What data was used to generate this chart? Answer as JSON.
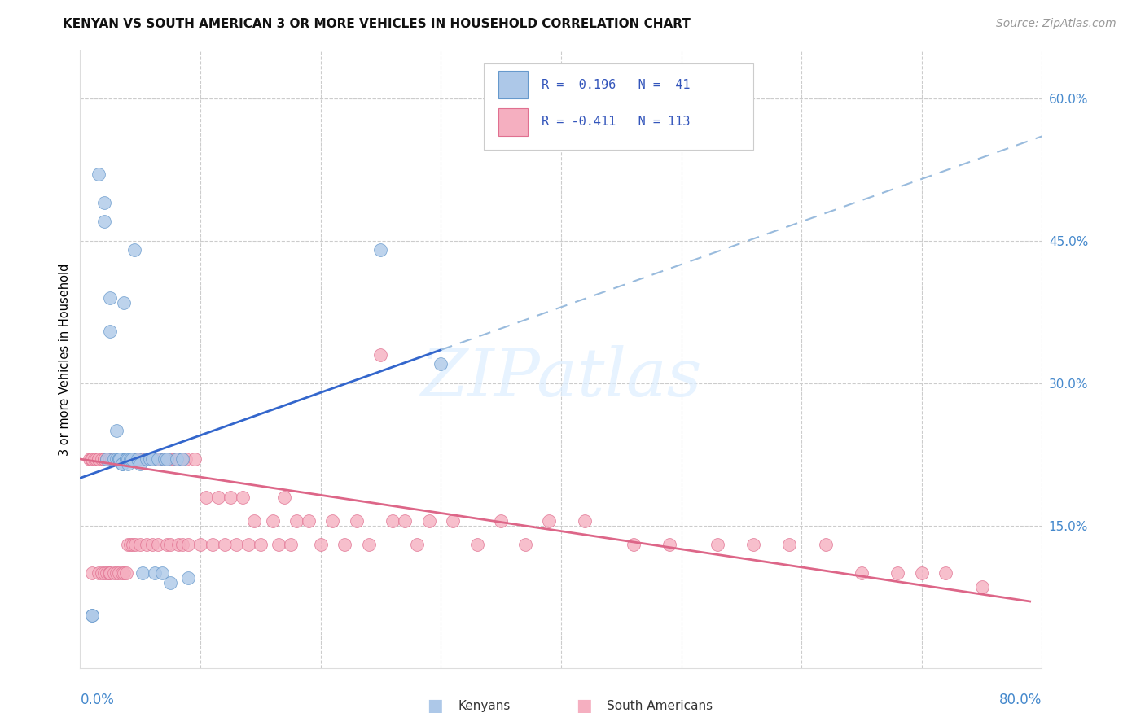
{
  "title": "KENYAN VS SOUTH AMERICAN 3 OR MORE VEHICLES IN HOUSEHOLD CORRELATION CHART",
  "source": "Source: ZipAtlas.com",
  "ylabel": "3 or more Vehicles in Household",
  "right_yticks": [
    "60.0%",
    "45.0%",
    "30.0%",
    "15.0%"
  ],
  "right_ytick_vals": [
    0.6,
    0.45,
    0.3,
    0.15
  ],
  "xmin": 0.0,
  "xmax": 0.8,
  "ymin": 0.0,
  "ymax": 0.65,
  "kenyan_color": "#adc8e8",
  "sa_color": "#f5afc0",
  "kenyan_edge": "#6699cc",
  "sa_edge": "#e07090",
  "blue_line_color": "#3366cc",
  "pink_line_color": "#dd6688",
  "dashed_line_color": "#99bbdd",
  "watermark_color": "#ddeeff",
  "kenyan_x": [
    0.01,
    0.01,
    0.015,
    0.02,
    0.02,
    0.022,
    0.025,
    0.025,
    0.028,
    0.03,
    0.03,
    0.032,
    0.032,
    0.033,
    0.035,
    0.035,
    0.036,
    0.038,
    0.038,
    0.04,
    0.04,
    0.042,
    0.043,
    0.045,
    0.048,
    0.05,
    0.052,
    0.055,
    0.058,
    0.06,
    0.062,
    0.065,
    0.068,
    0.07,
    0.072,
    0.075,
    0.08,
    0.085,
    0.09,
    0.25,
    0.3
  ],
  "kenyan_y": [
    0.055,
    0.055,
    0.52,
    0.47,
    0.49,
    0.22,
    0.39,
    0.355,
    0.22,
    0.25,
    0.22,
    0.22,
    0.22,
    0.22,
    0.215,
    0.215,
    0.385,
    0.22,
    0.22,
    0.215,
    0.22,
    0.22,
    0.22,
    0.44,
    0.22,
    0.215,
    0.1,
    0.22,
    0.22,
    0.22,
    0.1,
    0.22,
    0.1,
    0.22,
    0.22,
    0.09,
    0.22,
    0.22,
    0.095,
    0.44,
    0.32
  ],
  "sa_x": [
    0.008,
    0.009,
    0.01,
    0.01,
    0.012,
    0.013,
    0.015,
    0.015,
    0.015,
    0.018,
    0.018,
    0.02,
    0.02,
    0.02,
    0.022,
    0.022,
    0.024,
    0.024,
    0.025,
    0.025,
    0.026,
    0.026,
    0.028,
    0.028,
    0.03,
    0.03,
    0.032,
    0.032,
    0.033,
    0.033,
    0.035,
    0.035,
    0.036,
    0.036,
    0.038,
    0.038,
    0.04,
    0.04,
    0.042,
    0.042,
    0.044,
    0.044,
    0.045,
    0.046,
    0.048,
    0.05,
    0.05,
    0.052,
    0.055,
    0.055,
    0.058,
    0.06,
    0.06,
    0.062,
    0.065,
    0.065,
    0.068,
    0.07,
    0.072,
    0.075,
    0.075,
    0.078,
    0.08,
    0.082,
    0.085,
    0.085,
    0.088,
    0.09,
    0.095,
    0.1,
    0.105,
    0.11,
    0.115,
    0.12,
    0.125,
    0.13,
    0.135,
    0.14,
    0.145,
    0.15,
    0.16,
    0.165,
    0.17,
    0.175,
    0.18,
    0.19,
    0.2,
    0.21,
    0.22,
    0.23,
    0.24,
    0.25,
    0.26,
    0.27,
    0.28,
    0.29,
    0.31,
    0.33,
    0.35,
    0.37,
    0.39,
    0.42,
    0.46,
    0.49,
    0.53,
    0.56,
    0.59,
    0.62,
    0.65,
    0.68,
    0.7,
    0.72,
    0.75
  ],
  "sa_y": [
    0.22,
    0.22,
    0.22,
    0.1,
    0.22,
    0.22,
    0.22,
    0.22,
    0.1,
    0.22,
    0.1,
    0.22,
    0.22,
    0.1,
    0.22,
    0.1,
    0.22,
    0.1,
    0.22,
    0.1,
    0.22,
    0.22,
    0.22,
    0.1,
    0.22,
    0.1,
    0.22,
    0.1,
    0.22,
    0.22,
    0.22,
    0.1,
    0.22,
    0.1,
    0.22,
    0.1,
    0.22,
    0.13,
    0.22,
    0.13,
    0.22,
    0.13,
    0.22,
    0.13,
    0.22,
    0.22,
    0.13,
    0.22,
    0.22,
    0.13,
    0.22,
    0.22,
    0.13,
    0.22,
    0.22,
    0.13,
    0.22,
    0.22,
    0.13,
    0.22,
    0.13,
    0.22,
    0.22,
    0.13,
    0.22,
    0.13,
    0.22,
    0.13,
    0.22,
    0.13,
    0.18,
    0.13,
    0.18,
    0.13,
    0.18,
    0.13,
    0.18,
    0.13,
    0.155,
    0.13,
    0.155,
    0.13,
    0.18,
    0.13,
    0.155,
    0.155,
    0.13,
    0.155,
    0.13,
    0.155,
    0.13,
    0.33,
    0.155,
    0.155,
    0.13,
    0.155,
    0.155,
    0.13,
    0.155,
    0.13,
    0.155,
    0.155,
    0.13,
    0.13,
    0.13,
    0.13,
    0.13,
    0.13,
    0.1,
    0.1,
    0.1,
    0.1,
    0.085
  ]
}
